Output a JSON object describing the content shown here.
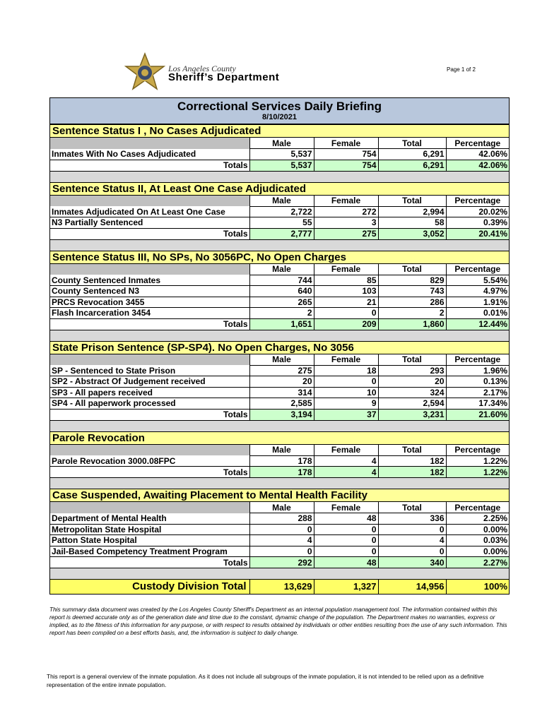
{
  "header": {
    "org_line1": "Los Angeles County",
    "org_line2": "Sheriff’s Department",
    "page": "Page 1 of 2"
  },
  "report": {
    "title": "Correctional Services Daily Briefing",
    "date": "8/10/2021"
  },
  "columns": [
    "Male",
    "Female",
    "Total",
    "Percentage"
  ],
  "sections": [
    {
      "title": "Sentence Status I , No Cases Adjudicated",
      "rows": [
        {
          "label": "Inmates With No Cases Adjudicated",
          "cells": [
            "5,537",
            "754",
            "6,291",
            "42.06%"
          ]
        }
      ],
      "totals": {
        "label": "Totals",
        "cells": [
          "5,537",
          "754",
          "6,291",
          "42.06%"
        ]
      }
    },
    {
      "title": "Sentence Status II, At Least One Case Adjudicated",
      "rows": [
        {
          "label": "Inmates Adjudicated On At Least One Case",
          "cells": [
            "2,722",
            "272",
            "2,994",
            "20.02%"
          ]
        },
        {
          "label": "N3 Partially Sentenced",
          "cells": [
            "55",
            "3",
            "58",
            "0.39%"
          ]
        }
      ],
      "totals": {
        "label": "Totals",
        "cells": [
          "2,777",
          "275",
          "3,052",
          "20.41%"
        ]
      }
    },
    {
      "title": "Sentence Status III, No SPs, No 3056PC, No Open Charges",
      "rows": [
        {
          "label": "County Sentenced Inmates",
          "cells": [
            "744",
            "85",
            "829",
            "5.54%"
          ]
        },
        {
          "label": "County Sentenced N3",
          "cells": [
            "640",
            "103",
            "743",
            "4.97%"
          ]
        },
        {
          "label": "PRCS Revocation 3455",
          "cells": [
            "265",
            "21",
            "286",
            "1.91%"
          ]
        },
        {
          "label": "Flash Incarceration 3454",
          "cells": [
            "2",
            "0",
            "2",
            "0.01%"
          ]
        }
      ],
      "totals": {
        "label": "Totals",
        "cells": [
          "1,651",
          "209",
          "1,860",
          "12.44%"
        ]
      }
    },
    {
      "title": "State Prison Sentence (SP-SP4). No Open Charges, No 3056",
      "rows": [
        {
          "label": "SP - Sentenced to State Prison",
          "cells": [
            "275",
            "18",
            "293",
            "1.96%"
          ]
        },
        {
          "label": "SP2 - Abstract Of Judgement received",
          "cells": [
            "20",
            "0",
            "20",
            "0.13%"
          ]
        },
        {
          "label": "SP3 - All papers received",
          "cells": [
            "314",
            "10",
            "324",
            "2.17%"
          ]
        },
        {
          "label": "SP4 - All paperwork processed",
          "cells": [
            "2,585",
            "9",
            "2,594",
            "17.34%"
          ]
        }
      ],
      "totals": {
        "label": "Totals",
        "cells": [
          "3,194",
          "37",
          "3,231",
          "21.60%"
        ]
      }
    },
    {
      "title": "Parole Revocation",
      "rows": [
        {
          "label": "Parole Revocation 3000.08FPC",
          "cells": [
            "178",
            "4",
            "182",
            "1.22%"
          ]
        }
      ],
      "totals": {
        "label": "Totals",
        "cells": [
          "178",
          "4",
          "182",
          "1.22%"
        ]
      }
    },
    {
      "title": "Case Suspended, Awaiting Placement to Mental Health Facility",
      "rows": [
        {
          "label": "Department of Mental Health",
          "cells": [
            "288",
            "48",
            "336",
            "2.25%"
          ]
        },
        {
          "label": "Metropolitan State Hospital",
          "cells": [
            "0",
            "0",
            "0",
            "0.00%"
          ]
        },
        {
          "label": "Patton State Hospital",
          "cells": [
            "4",
            "0",
            "4",
            "0.03%"
          ]
        },
        {
          "label": "Jail-Based Competency Treatment Program",
          "cells": [
            "0",
            "0",
            "0",
            "0.00%"
          ]
        }
      ],
      "totals": {
        "label": "Totals",
        "cells": [
          "292",
          "48",
          "340",
          "2.27%"
        ]
      }
    }
  ],
  "grand_total": {
    "label": "Custody Division Total",
    "cells": [
      "13,629",
      "1,327",
      "14,956",
      "100%"
    ]
  },
  "disclaimer": "This summary data document was created by the Los Angeles County Sheriff's Department as an internal population management tool.  The information contained within this report is deemed accurate only as of the generation date and time due to the constant, dynamic change of the population.  The Department makes no warranties, express or implied, as to the fitness of this information for any purpose, or with respect to results obtained by individuals or other entities resulting from the use of any such information.  This report has been compiled on a best efforts basis, and, the information is subject to daily change.",
  "footnote": "This report is a general overview of the inmate population.  As it does not include all subgroups of the inmate population, it is not intended to be relied upon as a definitive representation of the entire inmate population."
}
